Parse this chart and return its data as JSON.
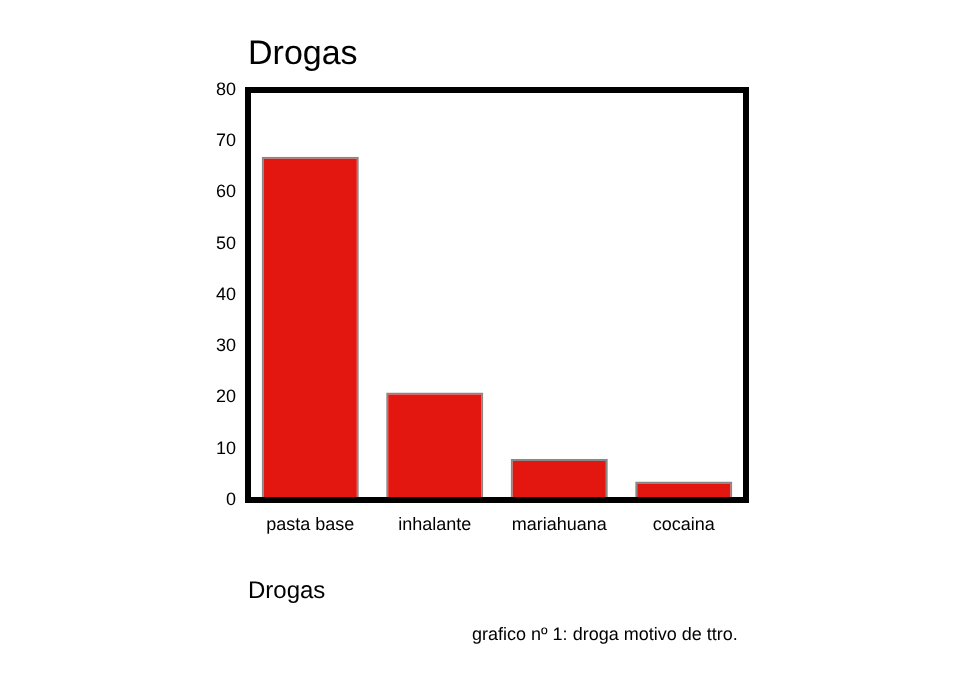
{
  "chart_data": {
    "type": "bar",
    "title": "Drogas",
    "xlabel": "Drogas",
    "categories": [
      "pasta base",
      "inhalante",
      "mariahuana",
      "cocaina"
    ],
    "values": [
      67,
      21,
      8,
      3.6
    ],
    "color": "#e3170f",
    "ylim": [
      0,
      80
    ],
    "yticks": [
      0,
      10,
      20,
      30,
      40,
      50,
      60,
      70,
      80
    ],
    "grid": false,
    "legend": false,
    "annotations": [
      "grafico nº 1: droga motivo de ttro."
    ]
  }
}
